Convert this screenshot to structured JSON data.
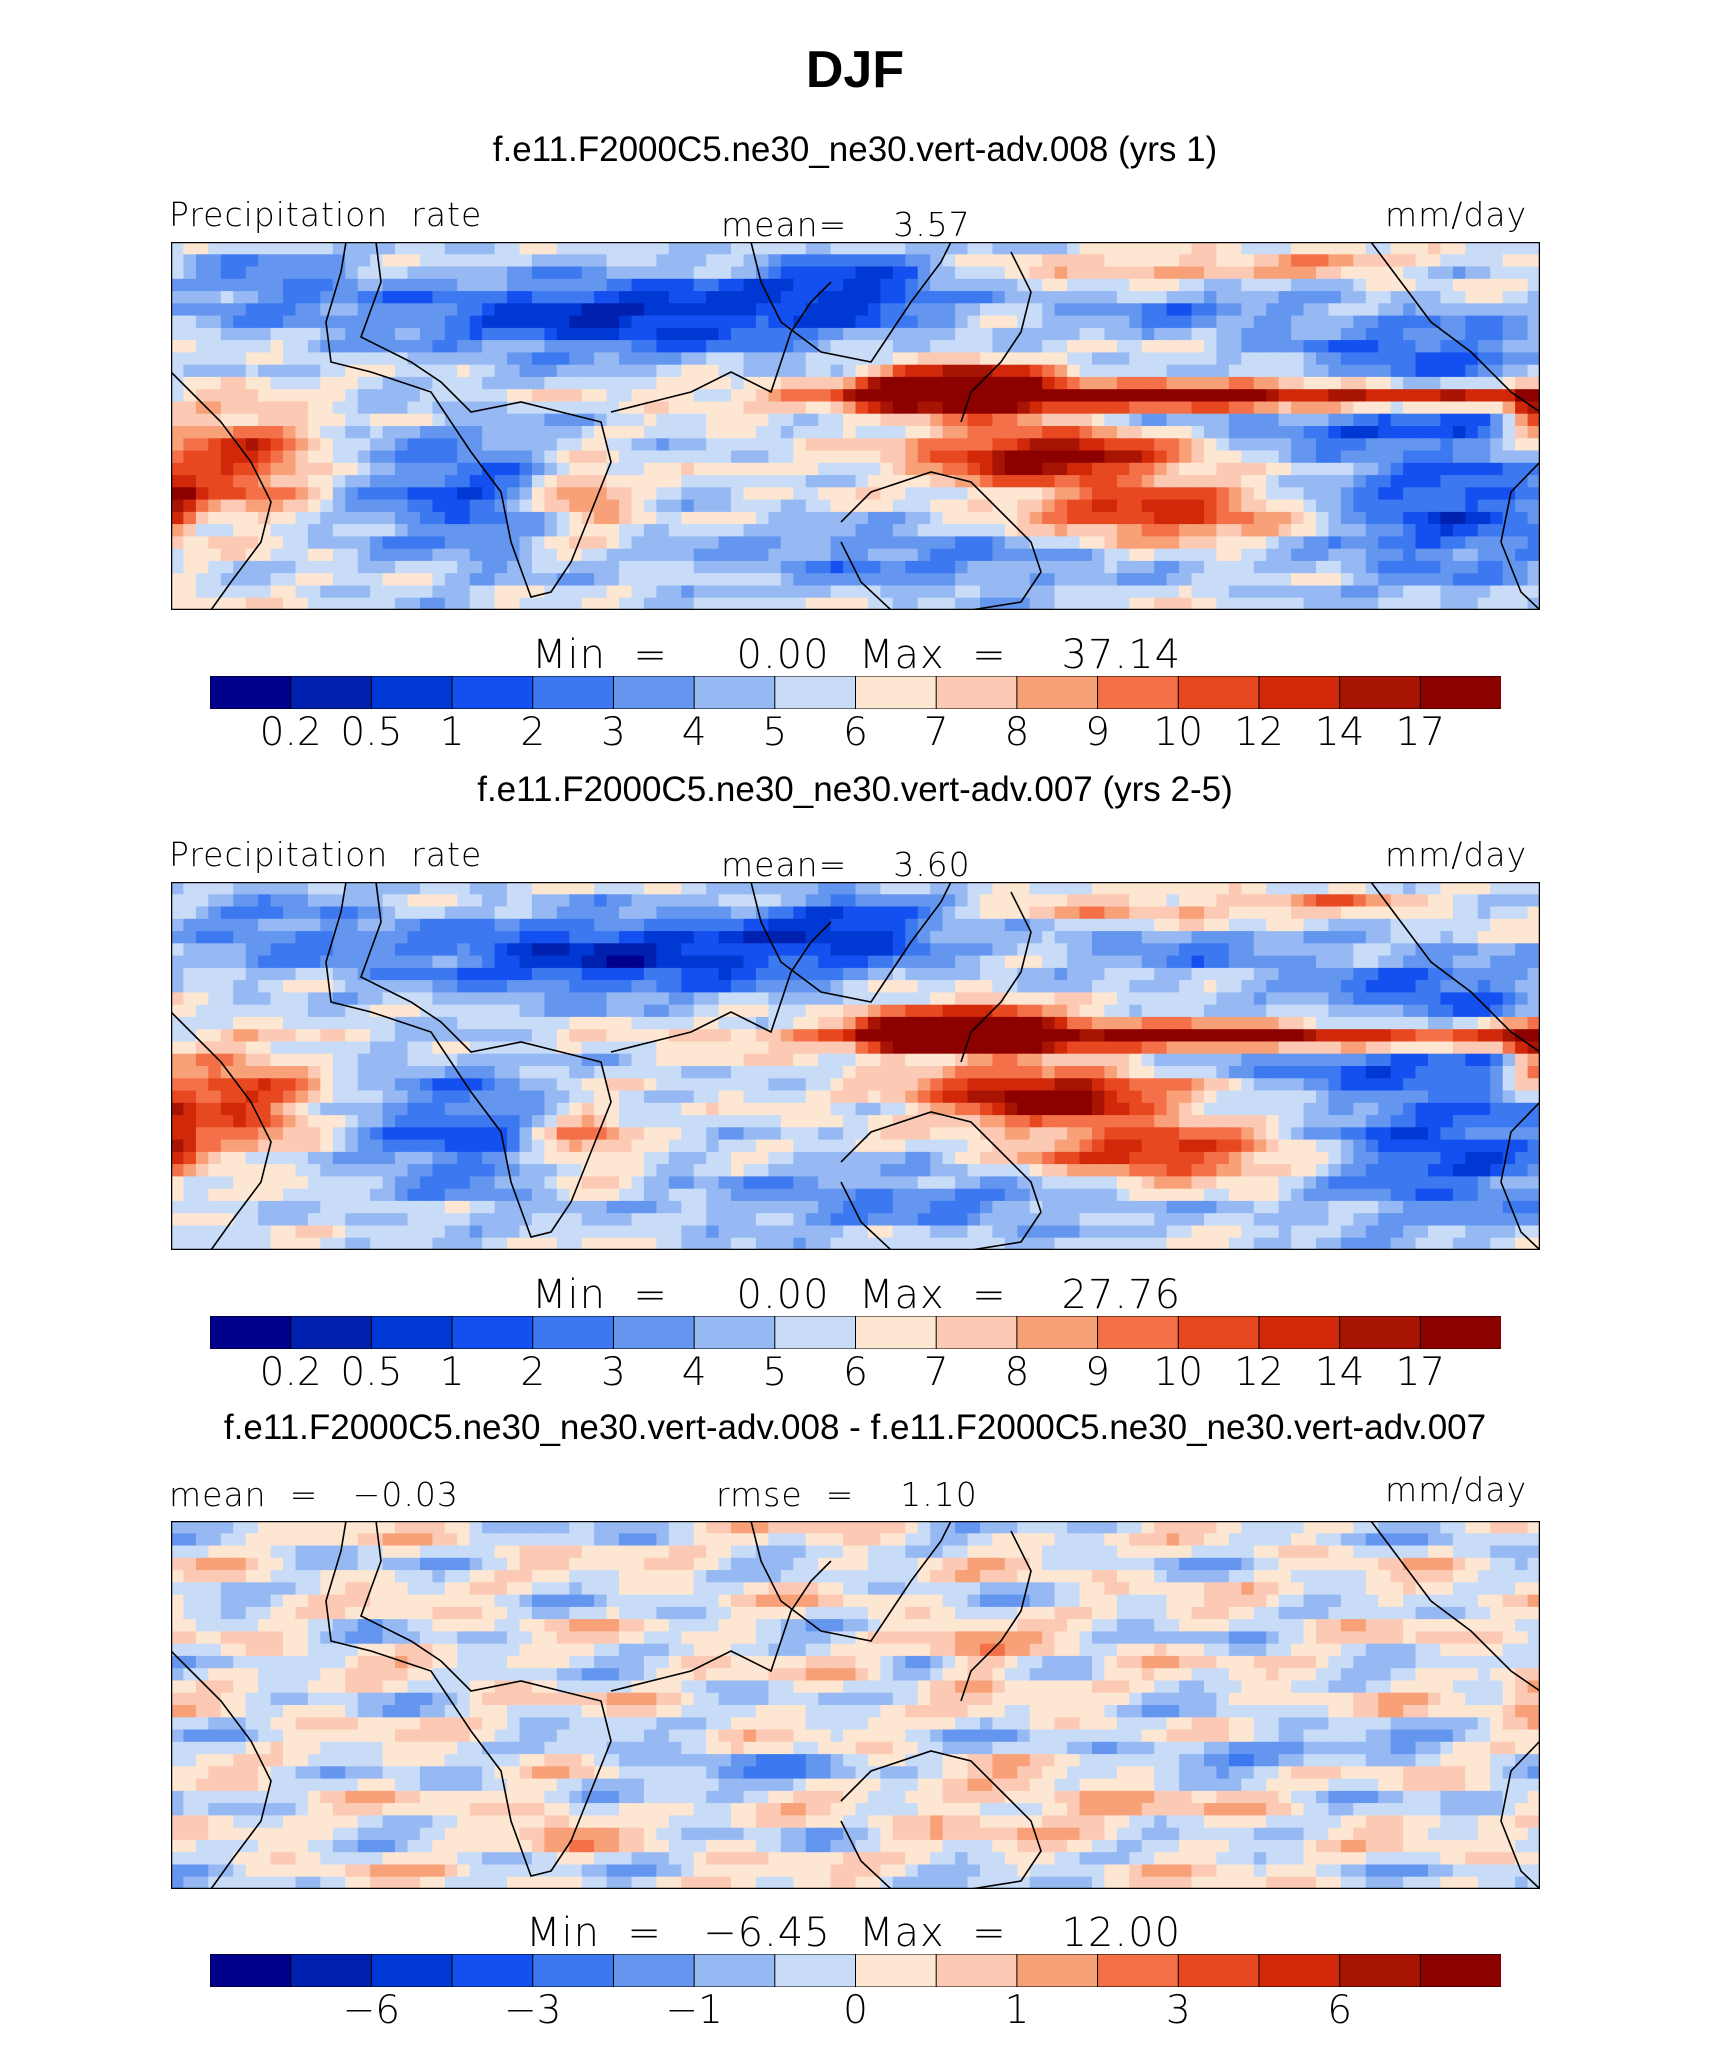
{
  "title": "DJF",
  "panels": [
    {
      "subtitle": "f.e11.F2000C5.ne30_ne30.vert-adv.008 (yrs 1)",
      "left_label": "Precipitation  rate",
      "center_label": "mean=    3.57",
      "units": "mm/day",
      "min_label": "Min  =     0.00",
      "max_label": "Max  =    37.14",
      "field": "precip"
    },
    {
      "subtitle": "f.e11.F2000C5.ne30_ne30.vert-adv.007 (yrs 2-5)",
      "left_label": "Precipitation  rate",
      "center_label": "mean=    3.60",
      "units": "mm/day",
      "min_label": "Min  =     0.00",
      "max_label": "Max  =    27.76",
      "field": "precip"
    },
    {
      "subtitle": "f.e11.F2000C5.ne30_ne30.vert-adv.008 - f.e11.F2000C5.ne30_ne30.vert-adv.007",
      "left_label": "mean  =   −0.03",
      "center_label": "rmse  =    1.10",
      "units": "mm/day",
      "min_label": "Min  =   −6.45",
      "max_label": "Max  =    12.00",
      "field": "diff"
    }
  ],
  "colorbar": {
    "colors": [
      "#00008c",
      "#0020b0",
      "#0038d4",
      "#1450f0",
      "#3c78f0",
      "#6496f0",
      "#96b9f4",
      "#c8dcf8",
      "#fde6d2",
      "#fccab4",
      "#f8a078",
      "#f47048",
      "#e84820",
      "#d02808",
      "#a81404",
      "#8c0000"
    ]
  },
  "chart_data": [
    {
      "type": "heatmap",
      "title": "f.e11.F2000C5.ne30_ne30.vert-adv.008 (yrs 1)",
      "variable": "Precipitation  rate",
      "units": "mm/day",
      "mean": 3.57,
      "min": 0.0,
      "max": 37.14,
      "contour_levels": [
        0.2,
        0.5,
        1,
        2,
        3,
        4,
        5,
        6,
        7,
        8,
        9,
        10,
        12,
        14,
        17
      ]
    },
    {
      "type": "heatmap",
      "title": "f.e11.F2000C5.ne30_ne30.vert-adv.007 (yrs 2-5)",
      "variable": "Precipitation  rate",
      "units": "mm/day",
      "mean": 3.6,
      "min": 0.0,
      "max": 27.76,
      "contour_levels": [
        0.2,
        0.5,
        1,
        2,
        3,
        4,
        5,
        6,
        7,
        8,
        9,
        10,
        12,
        14,
        17
      ]
    },
    {
      "type": "heatmap",
      "title": "f.e11.F2000C5.ne30_ne30.vert-adv.008 - f.e11.F2000C5.ne30_ne30.vert-adv.007",
      "units": "mm/day",
      "mean": -0.03,
      "rmse": 1.1,
      "min": -6.45,
      "max": 12.0,
      "colorbar_tick_labels": [
        "−6",
        "−3",
        "−1",
        "0",
        "1",
        "3",
        "6"
      ]
    }
  ],
  "tick_labels": {
    "precip": [
      "0.2",
      "0.5",
      "1",
      "2",
      "3",
      "4",
      "5",
      "6",
      "7",
      "8",
      "9",
      "10",
      "12",
      "14",
      "17"
    ],
    "diff": [
      "−6",
      "−3",
      "−1",
      "0",
      "1",
      "3",
      "6"
    ]
  }
}
